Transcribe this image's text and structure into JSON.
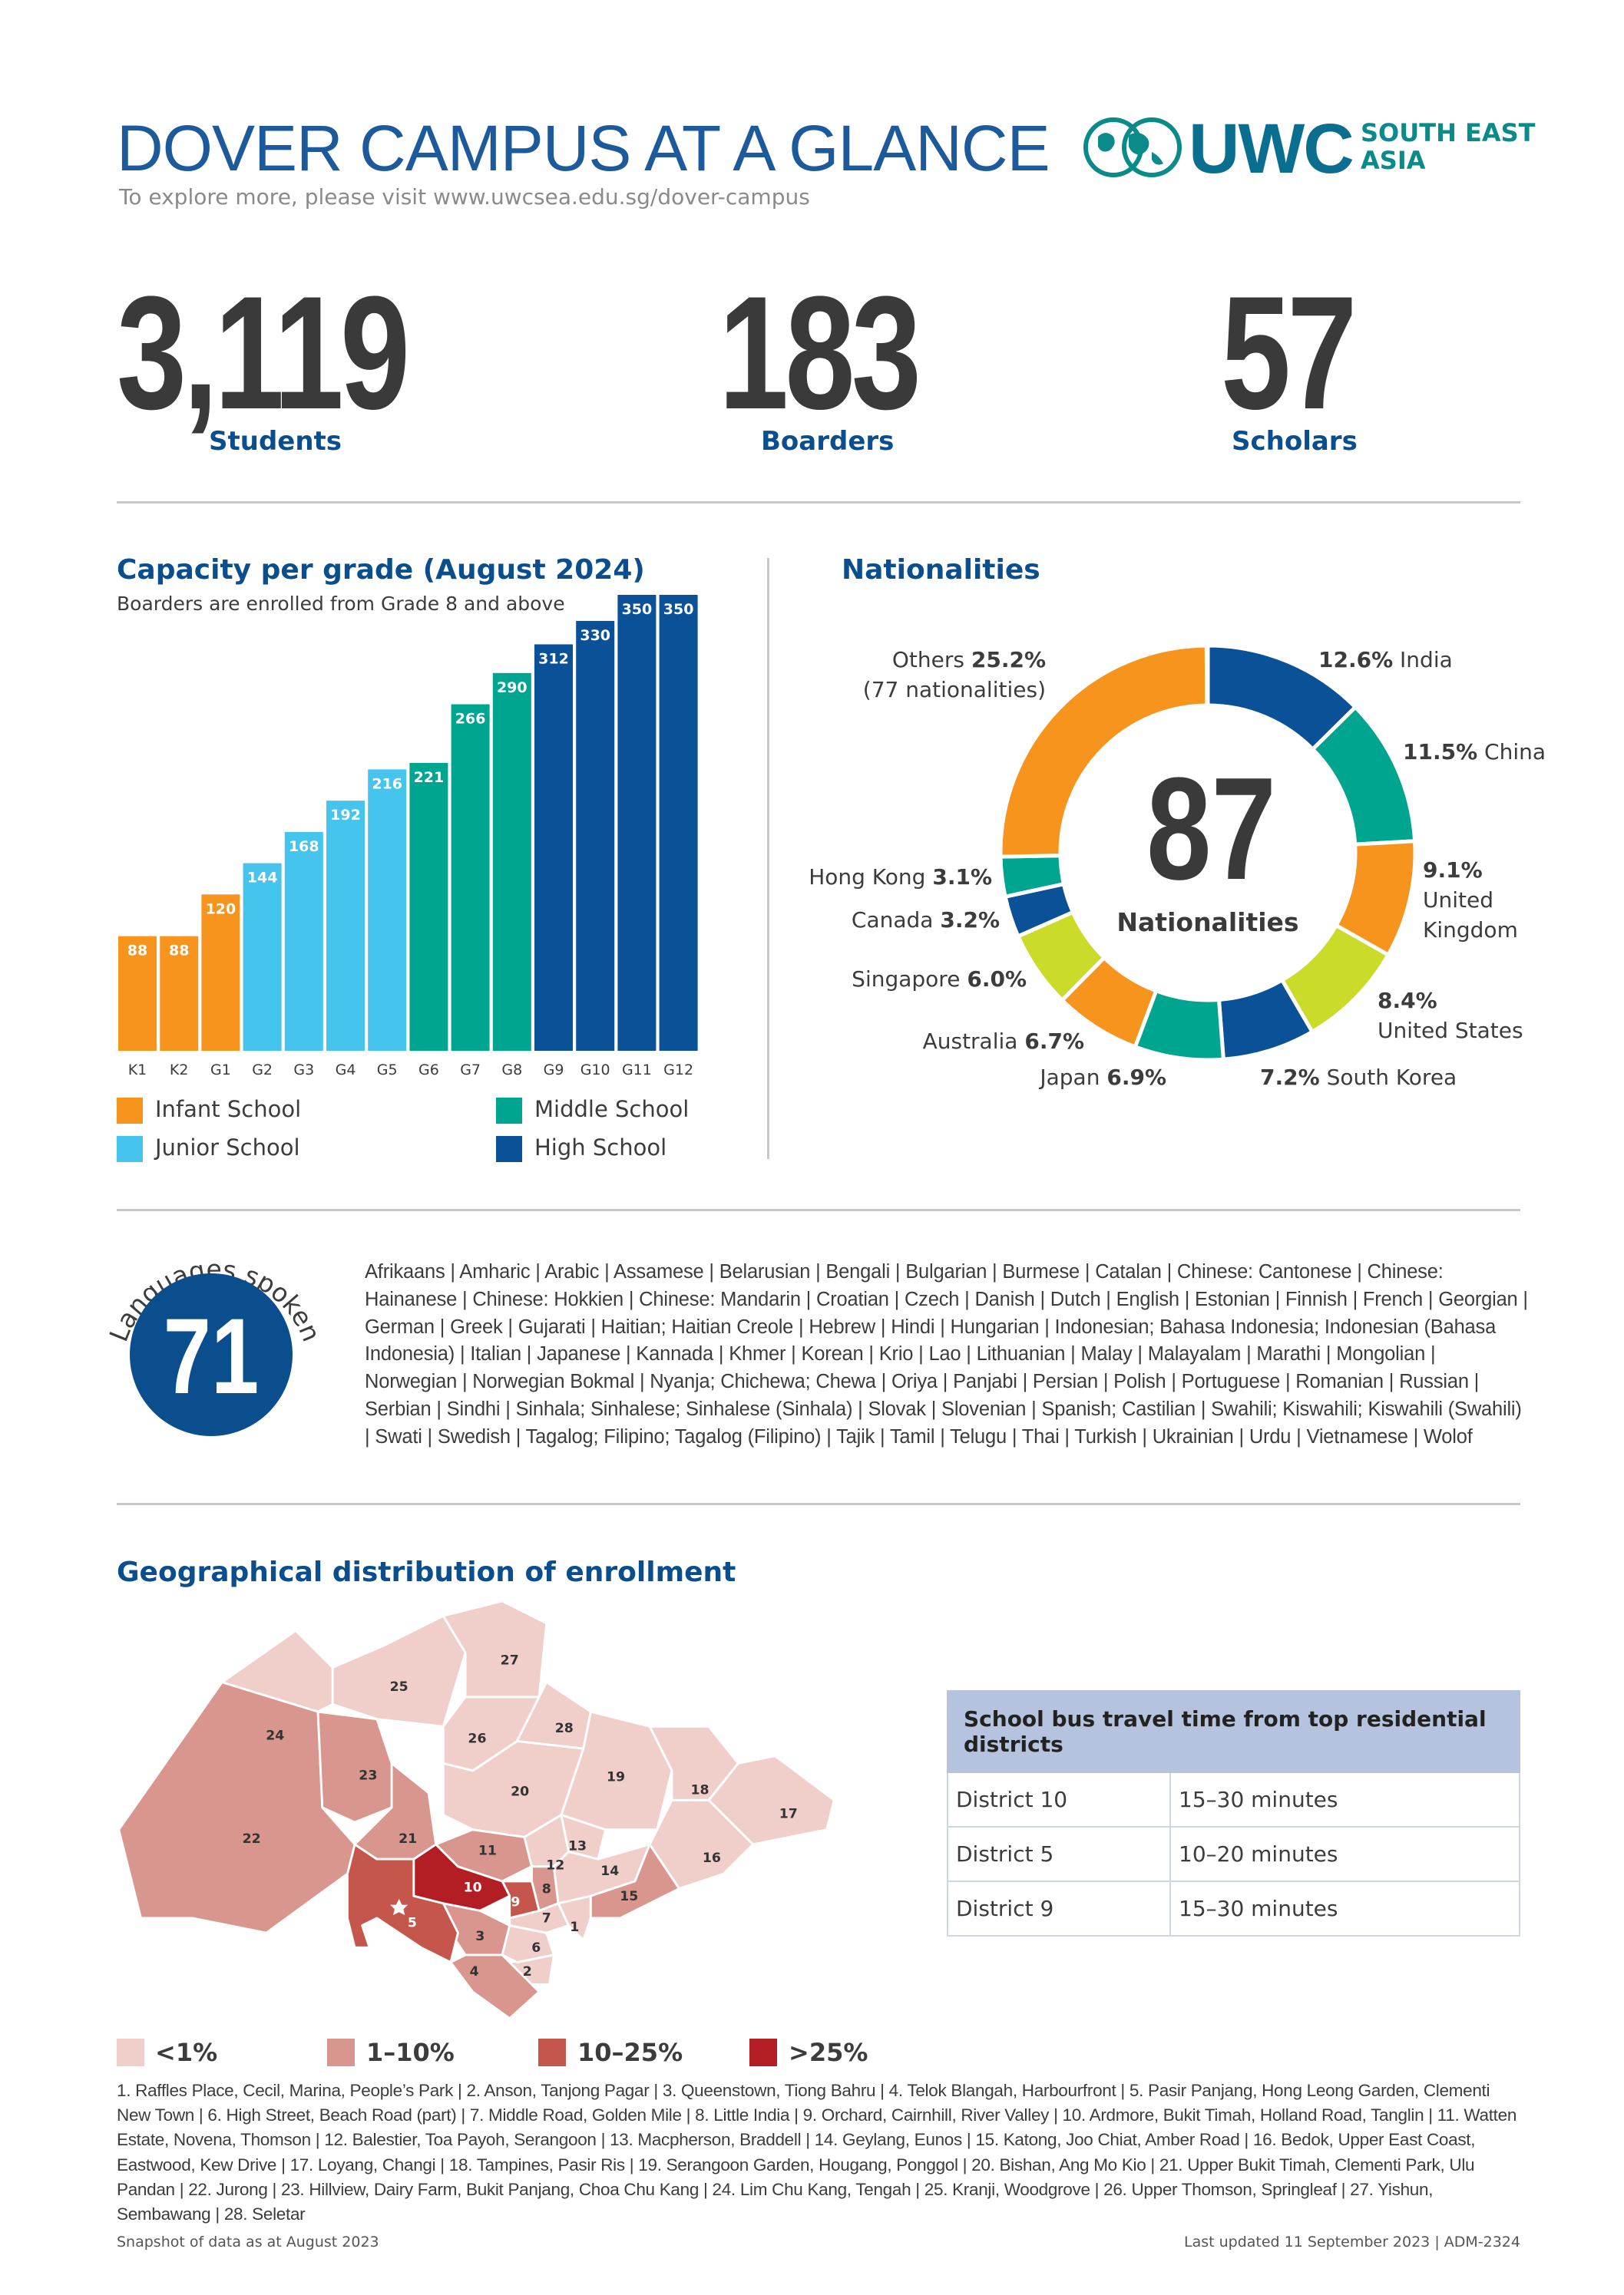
{
  "header": {
    "title": "DOVER CAMPUS AT A GLANCE",
    "subtitle": "To explore more, please visit www.uwcsea.edu.sg/dover-campus",
    "logo": {
      "text": "UWC",
      "tagline_1": "SOUTH EAST",
      "tagline_2": "ASIA",
      "icon": "globe-icon"
    }
  },
  "stats": [
    {
      "value": "3,119",
      "label": "Students"
    },
    {
      "value": "183",
      "label": "Boarders"
    },
    {
      "value": "57",
      "label": "Scholars"
    }
  ],
  "capacity": {
    "title": "Capacity per grade (August 2024)",
    "subtitle": "Boarders are enrolled from Grade 8 and above",
    "legend": [
      {
        "label": "Infant School",
        "color": "#f7941d"
      },
      {
        "label": "Junior School",
        "color": "#45c4ee"
      },
      {
        "label": "Middle School",
        "color": "#00a590"
      },
      {
        "label": "High School",
        "color": "#0b5198"
      }
    ]
  },
  "chart_data": [
    {
      "type": "bar",
      "title": "Capacity per grade (August 2024)",
      "subtitle": "Boarders are enrolled from Grade 8 and above",
      "categories": [
        "K1",
        "K2",
        "G1",
        "G2",
        "G3",
        "G4",
        "G5",
        "G6",
        "G7",
        "G8",
        "G9",
        "G10",
        "G11",
        "G12"
      ],
      "values": [
        88,
        88,
        120,
        144,
        168,
        192,
        216,
        221,
        266,
        290,
        312,
        330,
        350,
        350
      ],
      "groups": [
        "Infant School",
        "Infant School",
        "Infant School",
        "Junior School",
        "Junior School",
        "Junior School",
        "Junior School",
        "Middle School",
        "Middle School",
        "Middle School",
        "High School",
        "High School",
        "High School",
        "High School"
      ],
      "data_labels": true,
      "legend": "bottom"
    },
    {
      "type": "pie",
      "donut": true,
      "title": "Nationalities",
      "center_value": "87",
      "center_label": "Nationalities",
      "slices": [
        {
          "name": "India",
          "value": 12.6,
          "label": "12.6%",
          "color": "#0b5198"
        },
        {
          "name": "China",
          "value": 11.5,
          "label": "11.5%",
          "color": "#00a590"
        },
        {
          "name": "United Kingdom",
          "value": 9.1,
          "label": "9.1%",
          "color": "#f7941d"
        },
        {
          "name": "United States",
          "value": 8.4,
          "label": "8.4%",
          "color": "#cbdb2a"
        },
        {
          "name": "South Korea",
          "value": 7.2,
          "label": "7.2%",
          "color": "#0b5198"
        },
        {
          "name": "Japan",
          "value": 6.9,
          "label": "6.9%",
          "color": "#00a590"
        },
        {
          "name": "Australia",
          "value": 6.7,
          "label": "6.7%",
          "color": "#f7941d"
        },
        {
          "name": "Singapore",
          "value": 6.0,
          "label": "6.0%",
          "color": "#cbdb2a"
        },
        {
          "name": "Canada",
          "value": 3.2,
          "label": "3.2%",
          "color": "#0b5198"
        },
        {
          "name": "Hong Kong",
          "value": 3.1,
          "label": "3.1%",
          "color": "#00a590"
        },
        {
          "name": "Others",
          "value": 25.2,
          "label": "25.2%",
          "note": "(77 nationalities)",
          "color": "#f7941d"
        }
      ]
    }
  ],
  "nationalities": {
    "title": "Nationalities"
  },
  "languages": {
    "heading": "Languages spoken",
    "count": "71",
    "list": "Afrikaans | Amharic | Arabic | Assamese | Belarusian | Bengali | Bulgarian | Burmese | Catalan | Chinese: Cantonese | Chinese: Hainanese | Chinese: Hokkien | Chinese: Mandarin | Croatian | Czech | Danish | Dutch | English | Estonian | Finnish | French | Georgian | German | Greek | Gujarati | Haitian; Haitian Creole | Hebrew | Hindi | Hungarian | Indonesian; Bahasa Indonesia; Indonesian (Bahasa Indonesia) | Italian | Japanese | Kannada | Khmer | Korean | Krio | Lao | Lithuanian | Malay | Malayalam | Marathi | Mongolian | Norwegian | Norwegian Bokmal | Nyanja; Chichewa; Chewa | Oriya | Panjabi | Persian | Polish | Portuguese | Romanian | Russian | Serbian | Sindhi | Sinhala; Sinhalese; Sinhalese (Sinhala) | Slovak | Slovenian | Spanish; Castilian | Swahili; Kiswahili; Kiswahili (Swahili) | Swati | Swedish | Tagalog; Filipino; Tagalog (Filipino) | Tajik | Tamil | Telugu | Thai | Turkish | Ukrainian | Urdu | Vietnamese | Wolof"
  },
  "geography": {
    "title": "Geographical distribution of enrollment",
    "bands": [
      {
        "label": "<1%",
        "color": "#f0cfca"
      },
      {
        "label": "1–10%",
        "color": "#d9968e"
      },
      {
        "label": "10–25%",
        "color": "#c4564b"
      },
      {
        "label": ">25%",
        "color": "#b21e24"
      }
    ],
    "districts": [
      {
        "n": "1",
        "band": 0
      },
      {
        "n": "2",
        "band": 0
      },
      {
        "n": "3",
        "band": 1
      },
      {
        "n": "4",
        "band": 1
      },
      {
        "n": "5",
        "band": 2
      },
      {
        "n": "6",
        "band": 0
      },
      {
        "n": "7",
        "band": 0
      },
      {
        "n": "8",
        "band": 1
      },
      {
        "n": "9",
        "band": 2
      },
      {
        "n": "10",
        "band": 3
      },
      {
        "n": "11",
        "band": 1
      },
      {
        "n": "12",
        "band": 0
      },
      {
        "n": "13",
        "band": 0
      },
      {
        "n": "14",
        "band": 0
      },
      {
        "n": "15",
        "band": 1
      },
      {
        "n": "16",
        "band": 0
      },
      {
        "n": "17",
        "band": 0
      },
      {
        "n": "18",
        "band": 0
      },
      {
        "n": "19",
        "band": 0
      },
      {
        "n": "20",
        "band": 0
      },
      {
        "n": "21",
        "band": 1
      },
      {
        "n": "22",
        "band": 1
      },
      {
        "n": "23",
        "band": 1
      },
      {
        "n": "24",
        "band": 0
      },
      {
        "n": "25",
        "band": 0
      },
      {
        "n": "26",
        "band": 0
      },
      {
        "n": "27",
        "band": 0
      },
      {
        "n": "28",
        "band": 0
      }
    ],
    "campus_marker": "star-icon",
    "district_names": "1. Raffles Place, Cecil, Marina, People’s Park | 2. Anson, Tanjong Pagar | 3. Queenstown, Tiong Bahru | 4. Telok Blangah, Harbourfront | 5. Pasir Panjang, Hong Leong Garden, Clementi New Town | 6. High Street, Beach Road (part) | 7. Middle Road, Golden Mile | 8. Little India | 9. Orchard, Cairnhill, River Valley | 10. Ardmore, Bukit Timah, Holland Road, Tanglin | 11. Watten Estate, Novena, Thomson | 12. Balestier, Toa Payoh, Serangoon | 13. Macpherson, Braddell | 14. Geylang, Eunos | 15. Katong, Joo Chiat, Amber Road | 16. Bedok, Upper East Coast, Eastwood, Kew Drive | 17. Loyang, Changi | 18. Tampines, Pasir Ris | 19. Serangoon Garden, Hougang, Ponggol | 20. Bishan, Ang Mo Kio | 21. Upper Bukit Timah, Clementi Park, Ulu Pandan | 22. Jurong | 23. Hillview, Dairy Farm, Bukit Panjang, Choa Chu Kang | 24. Lim Chu Kang, Tengah | 25. Kranji, Woodgrove | 26. Upper Thomson, Springleaf | 27. Yishun, Sembawang | 28. Seletar",
    "bus_table": {
      "header": "School bus travel time from top residential districts",
      "rows": [
        {
          "district": "District 10",
          "time": "15–30 minutes"
        },
        {
          "district": "District 5",
          "time": "10–20 minutes"
        },
        {
          "district": "District 9",
          "time": "15–30 minutes"
        }
      ]
    }
  },
  "footer": {
    "left": "Snapshot of data as at August 2023",
    "right": "Last updated 11 September 2023 | ADM-2324"
  }
}
